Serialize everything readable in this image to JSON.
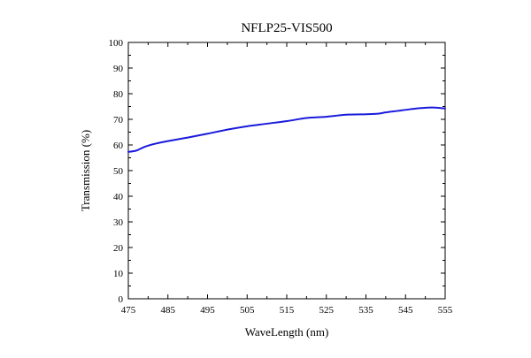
{
  "chart_data": {
    "type": "line",
    "title": "NFLP25-VIS500",
    "xlabel": "WaveLength (nm)",
    "ylabel": "Transmission (%)",
    "xlim": [
      475,
      555
    ],
    "ylim": [
      0,
      100
    ],
    "xticks": [
      475,
      485,
      495,
      505,
      515,
      525,
      535,
      545,
      555
    ],
    "yticks": [
      0,
      10,
      20,
      30,
      40,
      50,
      60,
      70,
      80,
      90,
      100
    ],
    "grid": false,
    "legend": "none",
    "series": [
      {
        "color": "#1a1adc",
        "x": [
          475,
          477,
          479,
          481,
          483,
          485,
          490,
          495,
          500,
          505,
          510,
          515,
          520,
          525,
          530,
          535,
          538,
          540,
          543,
          546,
          549,
          552,
          555
        ],
        "y": [
          57.3,
          57.8,
          59.2,
          60.2,
          60.9,
          61.5,
          62.9,
          64.4,
          66.0,
          67.3,
          68.3,
          69.3,
          70.5,
          71.0,
          71.8,
          72.0,
          72.2,
          72.7,
          73.3,
          73.9,
          74.4,
          74.6,
          74.2
        ]
      }
    ]
  }
}
